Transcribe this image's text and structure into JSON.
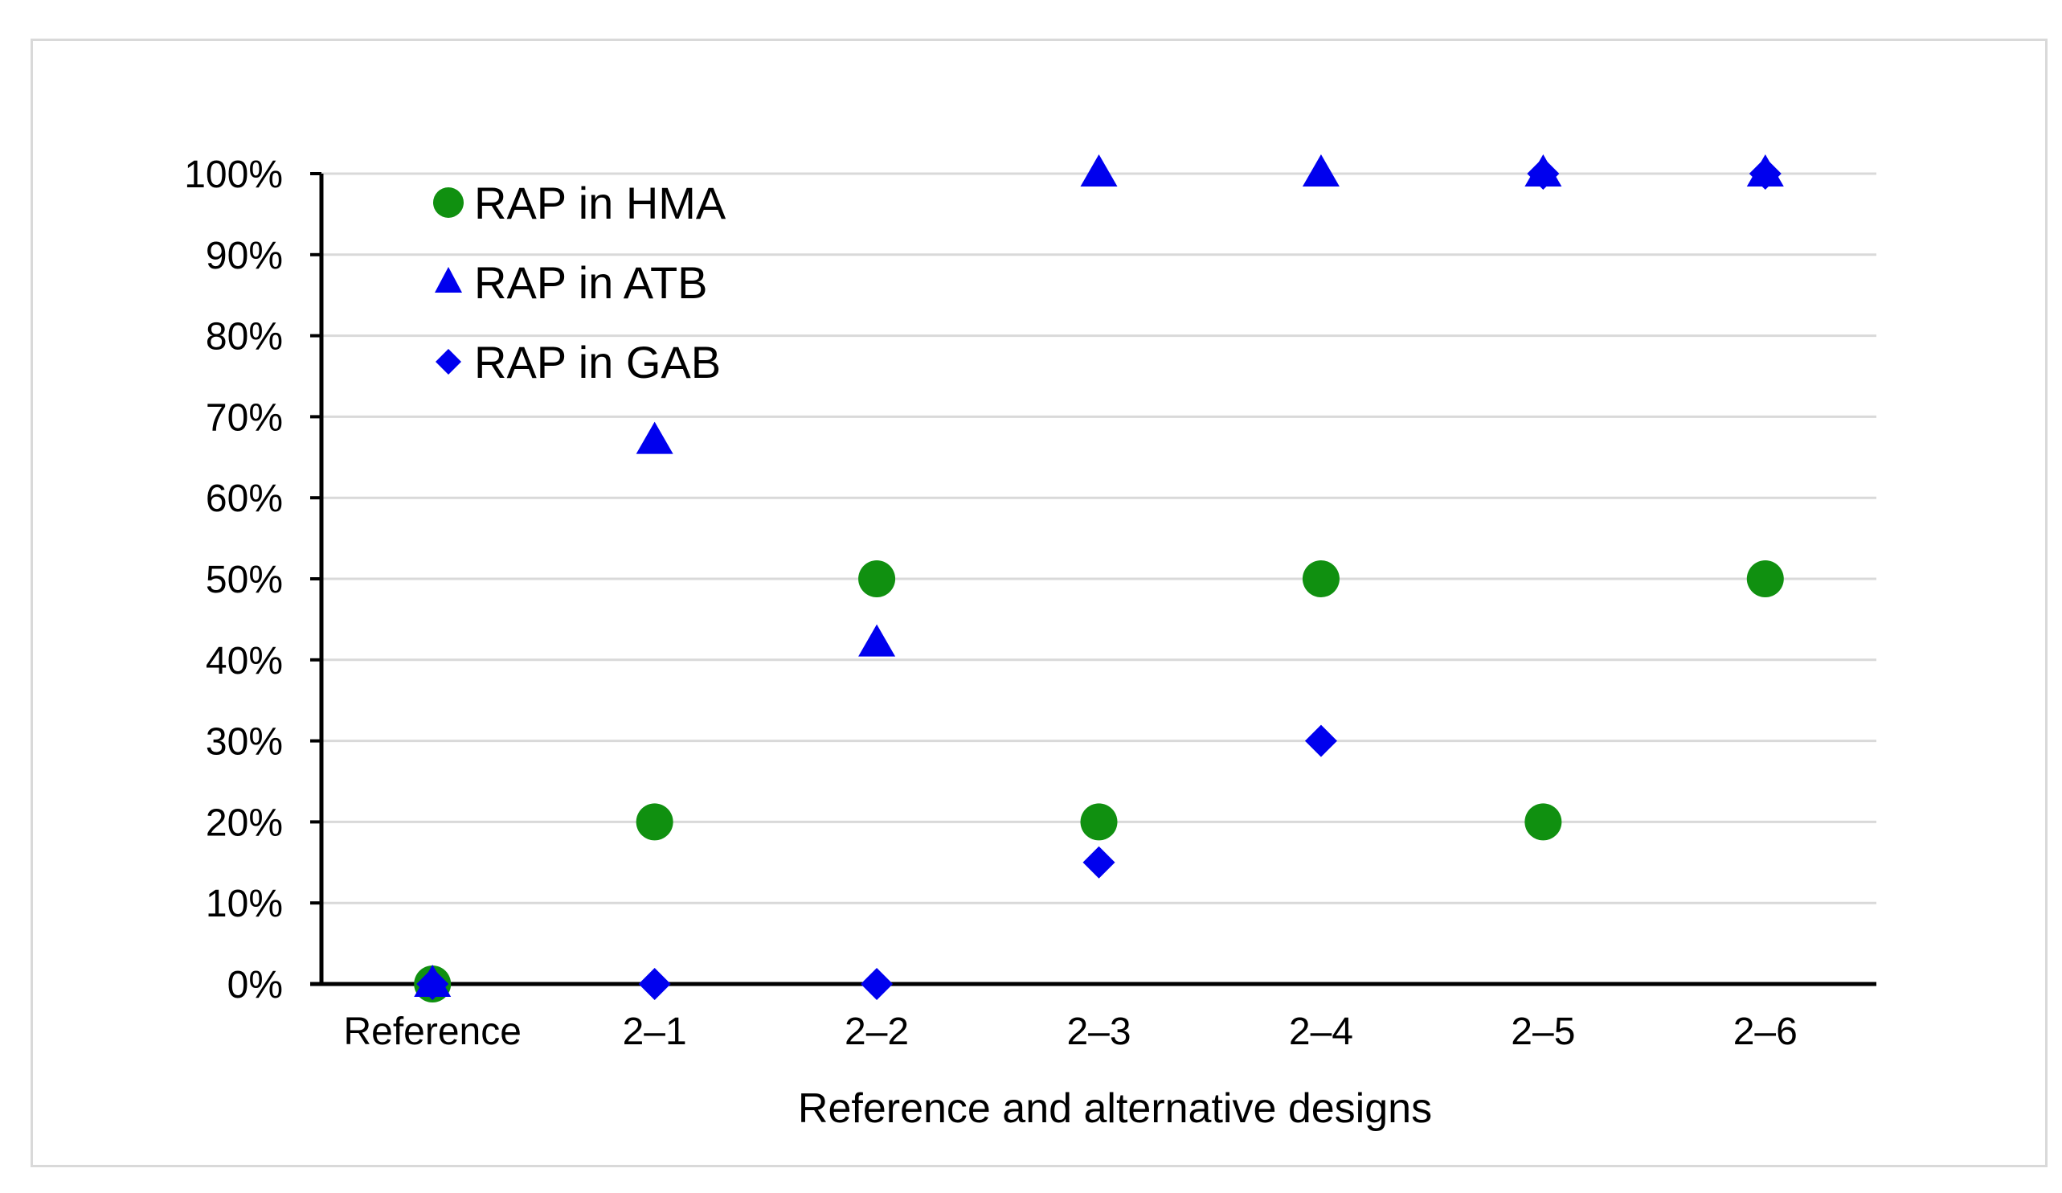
{
  "chart_data": {
    "type": "scatter",
    "title": "",
    "xlabel": "Reference and alternative designs",
    "ylabel": "",
    "categories": [
      "Reference",
      "2–1",
      "2–2",
      "2–3",
      "2–4",
      "2–5",
      "2–6"
    ],
    "ylim": [
      0,
      100
    ],
    "yticks": [
      "0%",
      "10%",
      "20%",
      "30%",
      "40%",
      "50%",
      "60%",
      "70%",
      "80%",
      "90%",
      "100%"
    ],
    "grid": true,
    "legend_position": "top-left",
    "series": [
      {
        "name": "RAP in HMA",
        "marker": "circle",
        "color": "#109010",
        "values": [
          0,
          20,
          50,
          20,
          50,
          20,
          50
        ]
      },
      {
        "name": "RAP in ATB",
        "marker": "triangle",
        "color": "#0000ee",
        "values": [
          0,
          67,
          42,
          100,
          100,
          100,
          100
        ]
      },
      {
        "name": "RAP in GAB",
        "marker": "diamond",
        "color": "#0000ee",
        "values": [
          0,
          0,
          0,
          15,
          30,
          100,
          100
        ]
      }
    ]
  }
}
